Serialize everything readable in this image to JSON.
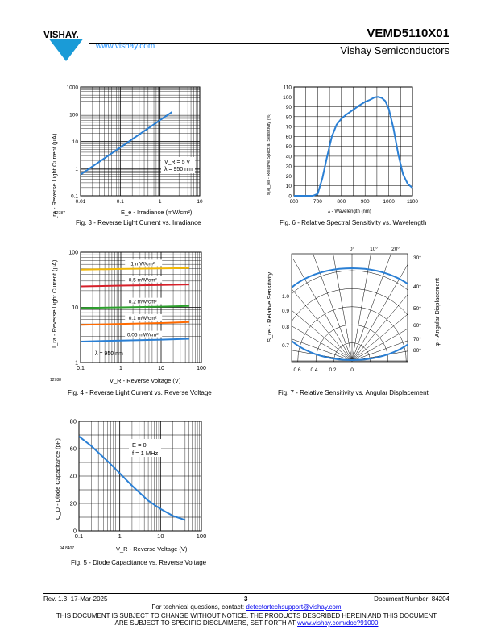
{
  "header": {
    "brand": "VISHAY.",
    "website": "www.vishay.com",
    "part_number": "VEMD5110X01",
    "company": "Vishay Semiconductors",
    "brand_color": "#1a9bd7"
  },
  "figures": {
    "fig3": {
      "caption": "Fig. 3 - Reverse Light Current vs. Irradiance",
      "code": "12787",
      "ylabel": "I_ra - Reverse Light Current (µA)",
      "xlabel": "E_e - Irradiance (mW/cm²)",
      "annotation1": "V_R = 5 V",
      "annotation2": "λ = 950 nm"
    },
    "fig4": {
      "caption": "Fig. 4 - Reverse Light Current vs. Reverse Voltage",
      "code": "12788",
      "ylabel": "I_ra - Reverse Light Current (µA)",
      "xlabel": "V_R - Reverse Voltage (V)",
      "annotation": "λ = 950 nm"
    },
    "fig5": {
      "caption": "Fig. 5 - Diode Capacitance vs. Reverse Voltage",
      "code": "94 8407",
      "ylabel": "C_D - Diode Capacitance (pF)",
      "xlabel": "V_R - Reverse Voltage (V)",
      "annotation1": "E = 0",
      "annotation2": "f = 1 MHz"
    },
    "fig6": {
      "caption": "Fig. 6 - Relative Spectral Sensitivity vs. Wavelength",
      "ylabel": "s(λ)_rel - Relative Spectral Sensitivity (%)",
      "xlabel": "λ - Wavelength (nm)"
    },
    "fig7": {
      "caption": "Fig. 7 - Relative Sensitivity vs. Angular Displacement",
      "ylabel": "S_rel - Relative Sensitivity",
      "y2label": "φ - Angular Displacement"
    }
  },
  "chart_data": [
    {
      "type": "line",
      "title": "",
      "xlabel": "E_e - Irradiance (mW/cm²)",
      "ylabel": "I_ra - Reverse Light Current (µA)",
      "x_scale": "log",
      "y_scale": "log",
      "xlim": [
        0.01,
        10
      ],
      "ylim": [
        0.1,
        1000
      ],
      "x_ticks": [
        "0.01",
        "0.1",
        "1",
        "10"
      ],
      "y_ticks": [
        "0.1",
        "1",
        "10",
        "100",
        "1000"
      ],
      "grid": true,
      "series": [
        {
          "x": [
            0.01,
            0.1,
            1,
            2
          ],
          "y": [
            0.6,
            6,
            60,
            120
          ]
        }
      ]
    },
    {
      "type": "line",
      "title": "",
      "xlabel": "V_R - Reverse Voltage (V)",
      "ylabel": "I_ra - Reverse Light Current (µA)",
      "x_scale": "log",
      "y_scale": "log",
      "xlim": [
        0.1,
        100
      ],
      "ylim": [
        1,
        100
      ],
      "x_ticks": [
        "0.1",
        "1",
        "10",
        "100"
      ],
      "y_ticks": [
        "1",
        "10",
        "100"
      ],
      "grid": true,
      "series": [
        {
          "name": "1 mW/cm²",
          "color": "#f2b705",
          "x": [
            0.1,
            1,
            10,
            50
          ],
          "y": [
            48,
            49.5,
            50.5,
            51.5
          ]
        },
        {
          "name": "0.5 mW/cm²",
          "color": "#d6202a",
          "x": [
            0.1,
            1,
            10,
            50
          ],
          "y": [
            24,
            24.8,
            25.5,
            26
          ]
        },
        {
          "name": "0.2 mW/cm²",
          "color": "#2ca02c",
          "x": [
            0.1,
            1,
            10,
            50
          ],
          "y": [
            9.7,
            10,
            10.3,
            10.6
          ]
        },
        {
          "name": "0.1 mW/cm²",
          "color": "#ff6a00",
          "x": [
            0.1,
            1,
            10,
            50
          ],
          "y": [
            4.8,
            5,
            5.2,
            5.4
          ]
        },
        {
          "name": "0.05 mW/cm²",
          "color": "#2a7fd4",
          "x": [
            0.1,
            1,
            10,
            50
          ],
          "y": [
            2.4,
            2.5,
            2.6,
            2.7
          ]
        }
      ]
    },
    {
      "type": "line",
      "title": "",
      "xlabel": "V_R - Reverse Voltage (V)",
      "ylabel": "C_D - Diode Capacitance (pF)",
      "x_scale": "log",
      "xlim": [
        0.1,
        100
      ],
      "ylim": [
        0,
        80
      ],
      "x_ticks": [
        "0.1",
        "1",
        "10",
        "100"
      ],
      "y_ticks": [
        "0",
        "20",
        "40",
        "60",
        "80"
      ],
      "grid": true,
      "series": [
        {
          "x": [
            0.1,
            0.2,
            0.5,
            1,
            2,
            5,
            10,
            20,
            40
          ],
          "y": [
            69,
            62,
            51,
            42,
            33,
            22,
            16,
            11,
            8
          ]
        }
      ]
    },
    {
      "type": "line",
      "title": "",
      "xlabel": "λ - Wavelength (nm)",
      "ylabel": "s(λ)_rel - Relative Spectral Sensitivity (%)",
      "xlim": [
        600,
        1100
      ],
      "ylim": [
        0,
        110
      ],
      "x_ticks": [
        "600",
        "700",
        "800",
        "900",
        "1000",
        "1100"
      ],
      "y_ticks": [
        "0",
        "10",
        "20",
        "30",
        "40",
        "50",
        "60",
        "70",
        "80",
        "90",
        "100",
        "110"
      ],
      "grid": true,
      "series": [
        {
          "x": [
            600,
            680,
            700,
            720,
            740,
            760,
            780,
            800,
            820,
            850,
            880,
            900,
            920,
            940,
            955,
            970,
            985,
            1000,
            1020,
            1040,
            1060,
            1080,
            1100
          ],
          "y": [
            0,
            0,
            2,
            18,
            40,
            60,
            72,
            78,
            82,
            87,
            92,
            95,
            97,
            99.5,
            100,
            99,
            96,
            88,
            68,
            42,
            22,
            12,
            8
          ]
        }
      ]
    },
    {
      "type": "polar",
      "title": "",
      "ylabel": "S_rel - Relative Sensitivity",
      "y2label": "φ - Angular Displacement",
      "r_ticks": [
        "0.7",
        "0.8",
        "0.9",
        "1.0"
      ],
      "bottom_ticks": [
        "0.6",
        "0.4",
        "0.2",
        "0"
      ],
      "angle_ticks": [
        "0°",
        "10°",
        "20°",
        "30°",
        "40°",
        "50°",
        "60°",
        "70°",
        "80°"
      ],
      "series": [
        {
          "angle_deg": [
            0,
            10,
            20,
            30,
            40,
            50,
            60,
            70,
            80,
            90
          ],
          "value": [
            1.0,
            0.985,
            0.94,
            0.866,
            0.766,
            0.643,
            0.5,
            0.342,
            0.174,
            0
          ]
        }
      ]
    }
  ],
  "footer": {
    "revision": "Rev. 1.3, 17-Mar-2025",
    "page": "3",
    "doc_number": "Document Number: 84204",
    "tech_prefix": "For technical questions, contact: ",
    "tech_email": "detectortechsupport@vishay.com",
    "disclaimer1": "THIS DOCUMENT IS SUBJECT TO CHANGE WITHOUT NOTICE. THE PRODUCTS DESCRIBED HEREIN AND THIS DOCUMENT",
    "disclaimer2_prefix": "ARE SUBJECT TO SPECIFIC DISCLAIMERS, SET FORTH AT ",
    "disclaimer2_link": "www.vishay.com/doc?91000"
  }
}
